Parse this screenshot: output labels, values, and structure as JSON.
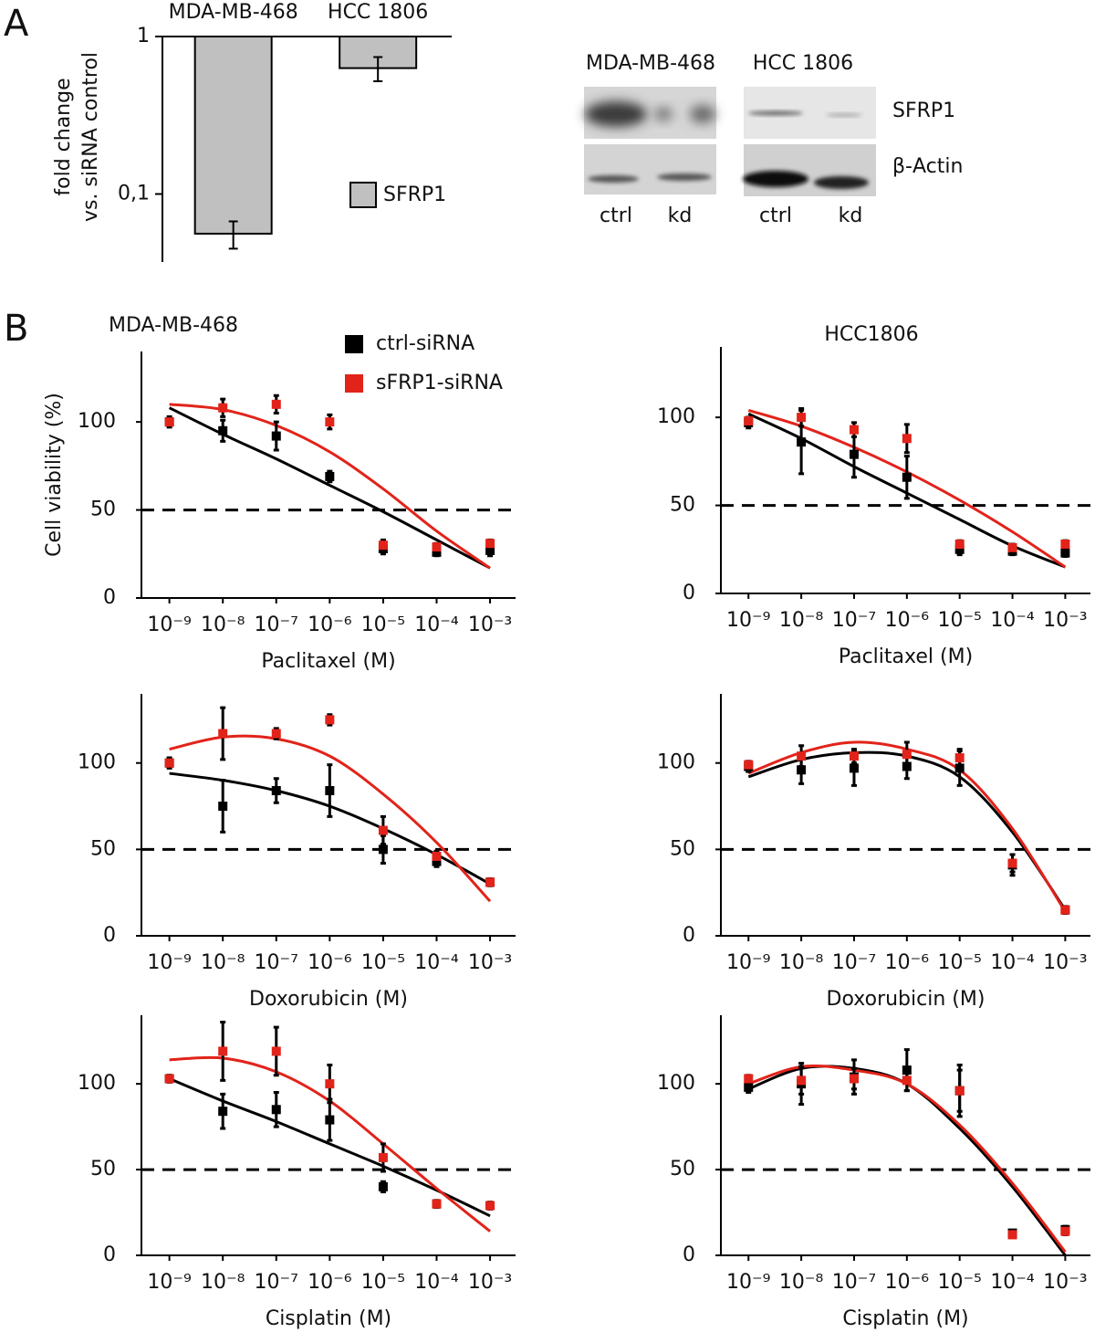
{
  "panel_labels": [
    "A",
    "B"
  ],
  "western_blot": {
    "cell_lines": [
      "MDA-MB-468",
      "HCC 1806"
    ],
    "proteins": [
      "SFRP1",
      "β-Actin"
    ],
    "lanes": [
      "ctrl",
      "kd",
      "ctrl",
      "kd"
    ]
  },
  "chart_data": [
    {
      "type": "bar",
      "ylabel": [
        "fold change",
        "vs. siRNA control"
      ],
      "categories": [
        "MDA-MB-468",
        "HCC 1806"
      ],
      "series": [
        {
          "name": "SFRP1",
          "color": "#c0c0c0",
          "values": [
            0.056,
            0.63
          ],
          "errors": [
            0.011,
            0.11
          ]
        }
      ],
      "log_y": true,
      "ylim": [
        0.037,
        1
      ],
      "yticks": [
        1,
        {
          "value": 0.1,
          "label": "0,1"
        }
      ]
    },
    {
      "type": "dose-response",
      "title": "MDA-MB-468",
      "ylabel": "Cell viability (%)",
      "xlabel": "Paclitaxel (M)",
      "x": [
        1e-09,
        1e-08,
        1e-07,
        1e-06,
        1e-05,
        0.0001,
        0.001
      ],
      "log_x": true,
      "xlim": [
        3e-10,
        0.003
      ],
      "xticks": [
        {
          "value": 1e-09,
          "label": "10⁻⁹"
        },
        {
          "value": 1e-08,
          "label": "10⁻⁸"
        },
        {
          "value": 1e-07,
          "label": "10⁻⁷"
        },
        {
          "value": 1e-06,
          "label": "10⁻⁶"
        },
        {
          "value": 1e-05,
          "label": "10⁻⁵"
        },
        {
          "value": 0.0001,
          "label": "10⁻⁴"
        },
        {
          "value": 0.001,
          "label": "10⁻³"
        }
      ],
      "ylim": [
        0,
        140
      ],
      "yticks": [
        0,
        50,
        100
      ],
      "hline": 50,
      "series": [
        {
          "name": "ctrl-siRNA",
          "color": "#000000",
          "values": [
            100,
            95,
            92,
            69,
            28,
            26,
            27
          ],
          "errors": [
            3,
            6,
            8,
            3,
            3,
            2,
            3
          ],
          "fit": [
            108,
            93,
            79,
            64,
            49,
            33,
            17
          ]
        },
        {
          "name": "sFRP1-siRNA",
          "color": "#e2231a",
          "values": [
            100,
            108,
            110,
            100,
            30,
            29,
            31
          ],
          "errors": [
            2,
            5,
            5,
            4,
            3,
            2,
            2
          ],
          "fit": [
            110,
            107,
            98,
            83,
            62,
            38,
            17
          ]
        }
      ]
    },
    {
      "type": "dose-response",
      "title": "HCC1806",
      "xlabel": "Paclitaxel (M)",
      "x": [
        1e-09,
        1e-08,
        1e-07,
        1e-06,
        1e-05,
        0.0001,
        0.001
      ],
      "log_x": true,
      "xlim": [
        3e-10,
        0.003
      ],
      "xticks": [
        {
          "value": 1e-09,
          "label": "10⁻⁹"
        },
        {
          "value": 1e-08,
          "label": "10⁻⁸"
        },
        {
          "value": 1e-07,
          "label": "10⁻⁷"
        },
        {
          "value": 1e-06,
          "label": "10⁻⁶"
        },
        {
          "value": 1e-05,
          "label": "10⁻⁵"
        },
        {
          "value": 0.0001,
          "label": "10⁻⁴"
        },
        {
          "value": 0.001,
          "label": "10⁻³"
        }
      ],
      "ylim": [
        0,
        140
      ],
      "yticks": [
        0,
        50,
        100
      ],
      "hline": 50,
      "series": [
        {
          "color": "#000000",
          "values": [
            97,
            86,
            79,
            66,
            25,
            24,
            23
          ],
          "errors": [
            3,
            18,
            13,
            12,
            3,
            2,
            2
          ],
          "fit": [
            102,
            88,
            72,
            57,
            42,
            27,
            15
          ]
        },
        {
          "color": "#e2231a",
          "values": [
            98,
            100,
            93,
            88,
            28,
            26,
            28
          ],
          "errors": [
            2,
            5,
            4,
            8,
            2,
            2,
            2
          ],
          "fit": [
            104,
            95,
            83,
            69,
            53,
            35,
            15
          ]
        }
      ]
    },
    {
      "type": "dose-response",
      "xlabel": "Doxorubicin (M)",
      "x": [
        1e-09,
        1e-08,
        1e-07,
        1e-06,
        1e-05,
        0.0001,
        0.001
      ],
      "log_x": true,
      "xlim": [
        3e-10,
        0.003
      ],
      "xticks": [
        {
          "value": 1e-09,
          "label": "10⁻⁹"
        },
        {
          "value": 1e-08,
          "label": "10⁻⁸"
        },
        {
          "value": 1e-07,
          "label": "10⁻⁷"
        },
        {
          "value": 1e-06,
          "label": "10⁻⁶"
        },
        {
          "value": 1e-05,
          "label": "10⁻⁵"
        },
        {
          "value": 0.0001,
          "label": "10⁻⁴"
        },
        {
          "value": 0.001,
          "label": "10⁻³"
        }
      ],
      "ylim": [
        0,
        140
      ],
      "yticks": [
        0,
        50,
        100
      ],
      "hline": 50,
      "series": [
        {
          "color": "#000000",
          "values": [
            100,
            75,
            84,
            84,
            50,
            43,
            31
          ],
          "errors": [
            3,
            15,
            7,
            15,
            8,
            3,
            2
          ],
          "fit": [
            94,
            90,
            84,
            75,
            62,
            47,
            30
          ]
        },
        {
          "color": "#e2231a",
          "values": [
            100,
            117,
            117,
            125,
            61,
            46,
            31
          ],
          "errors": [
            2,
            15,
            3,
            3,
            8,
            3,
            2
          ],
          "fit": [
            108,
            115,
            114,
            104,
            82,
            54,
            20
          ]
        }
      ]
    },
    {
      "type": "dose-response",
      "xlabel": "Doxorubicin (M)",
      "x": [
        1e-09,
        1e-08,
        1e-07,
        1e-06,
        1e-05,
        0.0001,
        0.001
      ],
      "log_x": true,
      "xlim": [
        3e-10,
        0.003
      ],
      "xticks": [
        {
          "value": 1e-09,
          "label": "10⁻⁹"
        },
        {
          "value": 1e-08,
          "label": "10⁻⁸"
        },
        {
          "value": 1e-07,
          "label": "10⁻⁷"
        },
        {
          "value": 1e-06,
          "label": "10⁻⁶"
        },
        {
          "value": 1e-05,
          "label": "10⁻⁵"
        },
        {
          "value": 0.0001,
          "label": "10⁻⁴"
        },
        {
          "value": 0.001,
          "label": "10⁻³"
        }
      ],
      "ylim": [
        0,
        140
      ],
      "yticks": [
        0,
        50,
        100
      ],
      "hline": 50,
      "series": [
        {
          "color": "#000000",
          "values": [
            98,
            96,
            97,
            98,
            97,
            41,
            15
          ],
          "errors": [
            3,
            8,
            10,
            7,
            10,
            6,
            2
          ],
          "fit": [
            92,
            102,
            106,
            104,
            92,
            60,
            15
          ]
        },
        {
          "color": "#e2231a",
          "values": [
            99,
            104,
            104,
            105,
            103,
            42,
            15
          ],
          "errors": [
            2,
            6,
            4,
            7,
            5,
            5,
            2
          ],
          "fit": [
            94,
            106,
            112,
            108,
            96,
            62,
            14
          ]
        }
      ]
    },
    {
      "type": "dose-response",
      "xlabel": "Cisplatin (M)",
      "x": [
        1e-09,
        1e-08,
        1e-07,
        1e-06,
        1e-05,
        0.0001,
        0.001
      ],
      "log_x": true,
      "xlim": [
        3e-10,
        0.003
      ],
      "xticks": [
        {
          "value": 1e-09,
          "label": "10⁻⁹"
        },
        {
          "value": 1e-08,
          "label": "10⁻⁸"
        },
        {
          "value": 1e-07,
          "label": "10⁻⁷"
        },
        {
          "value": 1e-06,
          "label": "10⁻⁶"
        },
        {
          "value": 1e-05,
          "label": "10⁻⁵"
        },
        {
          "value": 0.0001,
          "label": "10⁻⁴"
        },
        {
          "value": 0.001,
          "label": "10⁻³"
        }
      ],
      "ylim": [
        0,
        140
      ],
      "yticks": [
        0,
        50,
        100
      ],
      "hline": 50,
      "series": [
        {
          "color": "#000000",
          "values": [
            103,
            84,
            85,
            79,
            40,
            30,
            29
          ],
          "errors": [
            2,
            10,
            10,
            12,
            3,
            2,
            2
          ],
          "fit": [
            103,
            90,
            78,
            65,
            52,
            38,
            23
          ]
        },
        {
          "color": "#e2231a",
          "values": [
            103,
            119,
            119,
            100,
            57,
            30,
            29
          ],
          "errors": [
            2,
            17,
            14,
            11,
            8,
            2,
            2
          ],
          "fit": [
            114,
            115,
            107,
            90,
            65,
            39,
            14
          ]
        }
      ]
    },
    {
      "type": "dose-response",
      "xlabel": "Cisplatin (M)",
      "x": [
        1e-09,
        1e-08,
        1e-07,
        1e-06,
        1e-05,
        0.0001,
        0.001
      ],
      "log_x": true,
      "xlim": [
        3e-10,
        0.003
      ],
      "xticks": [
        {
          "value": 1e-09,
          "label": "10⁻⁹"
        },
        {
          "value": 1e-08,
          "label": "10⁻⁸"
        },
        {
          "value": 1e-07,
          "label": "10⁻⁷"
        },
        {
          "value": 1e-06,
          "label": "10⁻⁶"
        },
        {
          "value": 1e-05,
          "label": "10⁻⁵"
        },
        {
          "value": 0.0001,
          "label": "10⁻⁴"
        },
        {
          "value": 0.001,
          "label": "10⁻³"
        }
      ],
      "ylim": [
        0,
        140
      ],
      "yticks": [
        0,
        50,
        100
      ],
      "hline": 50,
      "series": [
        {
          "color": "#000000",
          "values": [
            98,
            100,
            104,
            108,
            96,
            13,
            15
          ],
          "errors": [
            3,
            12,
            10,
            12,
            15,
            1,
            2
          ],
          "fit": [
            97,
            109,
            109,
            100,
            74,
            40,
            0
          ]
        },
        {
          "color": "#e2231a",
          "values": [
            103,
            102,
            103,
            102,
            96,
            12,
            14
          ],
          "errors": [
            2,
            8,
            6,
            6,
            12,
            1,
            2
          ],
          "fit": [
            100,
            110,
            108,
            100,
            76,
            42,
            2
          ]
        }
      ]
    }
  ]
}
